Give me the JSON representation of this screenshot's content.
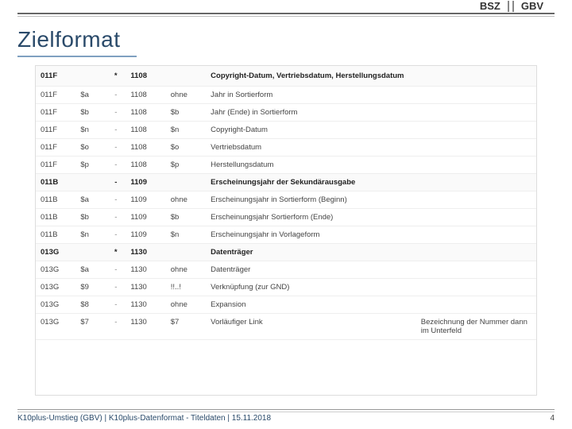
{
  "heading": "Zielformat",
  "logos": {
    "left": "BSZ",
    "right": "GBV"
  },
  "footer": "K10plus-Umstieg (GBV) | K10plus-Datenformat - Titeldaten | 15.11.2018",
  "page_number": "4",
  "table": {
    "columns": [
      "col1",
      "col2",
      "col3",
      "col4",
      "col5",
      "col6",
      "col7"
    ],
    "rows": [
      {
        "header": true,
        "cells": [
          "011F",
          "",
          "*",
          "1108",
          "",
          "Copyright-Datum, Vertriebsdatum, Herstellungsdatum",
          ""
        ]
      },
      {
        "cells": [
          "011F",
          "$a",
          "-",
          "1108",
          "ohne",
          "Jahr in Sortierform",
          ""
        ]
      },
      {
        "cells": [
          "011F",
          "$b",
          "-",
          "1108",
          "$b",
          "Jahr (Ende) in Sortierform",
          ""
        ]
      },
      {
        "cells": [
          "011F",
          "$n",
          "-",
          "1108",
          "$n",
          "Copyright-Datum",
          ""
        ]
      },
      {
        "cells": [
          "011F",
          "$o",
          "-",
          "1108",
          "$o",
          "Vertriebsdatum",
          ""
        ]
      },
      {
        "cells": [
          "011F",
          "$p",
          "-",
          "1108",
          "$p",
          "Herstellungsdatum",
          ""
        ]
      },
      {
        "header": true,
        "cells": [
          "011B",
          "",
          "-",
          "1109",
          "",
          "Erscheinungsjahr der Sekundärausgabe",
          ""
        ]
      },
      {
        "cells": [
          "011B",
          "$a",
          "-",
          "1109",
          "ohne",
          "Erscheinungsjahr in Sortierform (Beginn)",
          ""
        ]
      },
      {
        "cells": [
          "011B",
          "$b",
          "-",
          "1109",
          "$b",
          "Erscheinungsjahr Sortierform (Ende)",
          ""
        ]
      },
      {
        "cells": [
          "011B",
          "$n",
          "-",
          "1109",
          "$n",
          "Erscheinungsjahr in Vorlageform",
          ""
        ]
      },
      {
        "header": true,
        "cells": [
          "013G",
          "",
          "*",
          "1130",
          "",
          "Datenträger",
          ""
        ]
      },
      {
        "cells": [
          "013G",
          "$a",
          "-",
          "1130",
          "ohne",
          "Datenträger",
          ""
        ]
      },
      {
        "cells": [
          "013G",
          "$9",
          "-",
          "1130",
          "!!..!",
          "Verknüpfung (zur GND)",
          ""
        ]
      },
      {
        "cells": [
          "013G",
          "$8",
          "-",
          "1130",
          "ohne",
          "Expansion",
          ""
        ]
      },
      {
        "cells": [
          "013G",
          "$7",
          "-",
          "1130",
          "$7",
          "Vorläufiger Link",
          "Bezeichnung der Nummer dann im Unterfeld"
        ]
      }
    ]
  }
}
